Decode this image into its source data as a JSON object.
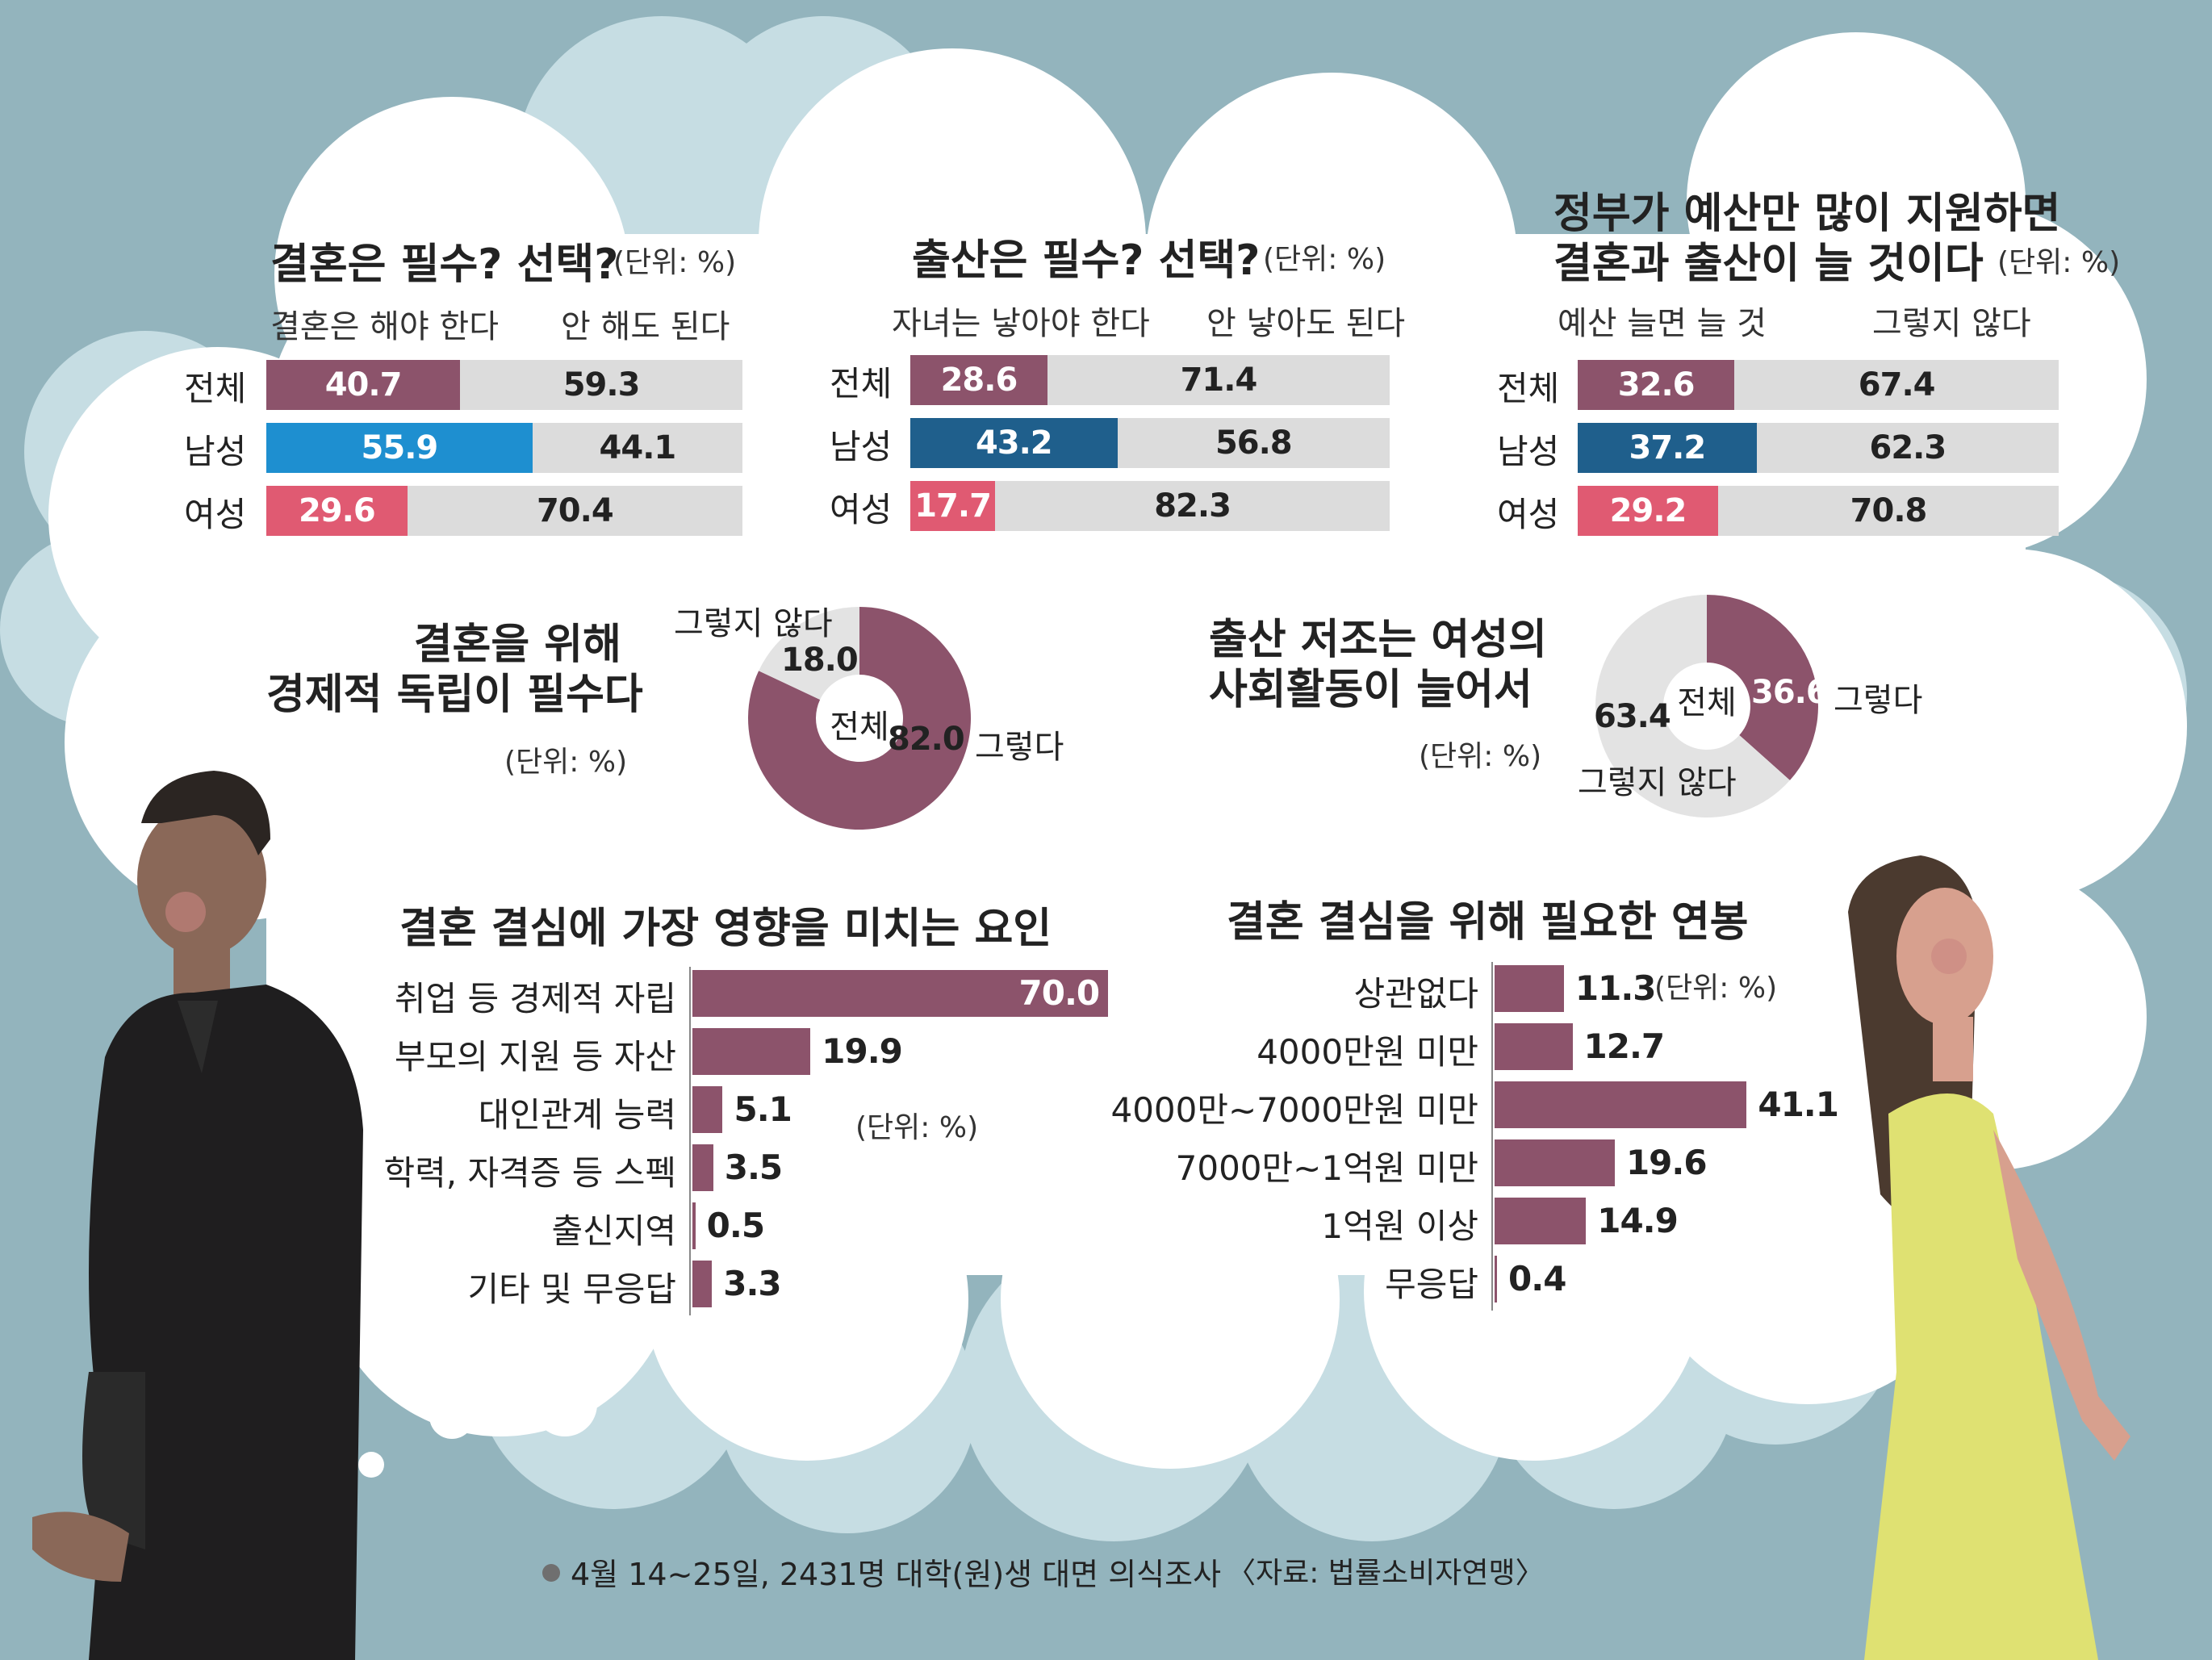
{
  "colors": {
    "background": "#93b4bd",
    "bar_purple": "#8c536b",
    "bar_blue": "#1e8fd0",
    "bar_darkblue": "#1f5f8c",
    "bar_pink": "#e05a72",
    "bar_remainder": "#dcdcdc",
    "donut_remainder": "#e3e3e3"
  },
  "chart_data": [
    {
      "type": "bar",
      "stacked": true,
      "orientation": "horizontal",
      "title": "결혼은 필수? 선택?",
      "unit": "(단위: %)",
      "categories": [
        "전체",
        "남성",
        "여성"
      ],
      "series": [
        {
          "name": "결혼은 해야 한다",
          "values": [
            40.7,
            55.9,
            29.6
          ]
        },
        {
          "name": "안 해도 된다",
          "values": [
            59.3,
            44.1,
            70.4
          ]
        }
      ],
      "xlim": [
        0,
        100
      ]
    },
    {
      "type": "bar",
      "stacked": true,
      "orientation": "horizontal",
      "title": "출산은 필수? 선택?",
      "unit": "(단위: %)",
      "categories": [
        "전체",
        "남성",
        "여성"
      ],
      "series": [
        {
          "name": "자녀는 낳아야 한다",
          "values": [
            28.6,
            43.2,
            17.7
          ]
        },
        {
          "name": "안 낳아도 된다",
          "values": [
            71.4,
            56.8,
            82.3
          ]
        }
      ],
      "xlim": [
        0,
        100
      ]
    },
    {
      "type": "bar",
      "stacked": true,
      "orientation": "horizontal",
      "title_lines": [
        "정부가 예산만 많이 지원하면",
        "결혼과 출산이 늘 것이다"
      ],
      "unit": "(단위: %)",
      "categories": [
        "전체",
        "남성",
        "여성"
      ],
      "series": [
        {
          "name": "예산 늘면 늘 것",
          "values": [
            32.6,
            37.2,
            29.2
          ]
        },
        {
          "name": "그렇지 않다",
          "values": [
            67.4,
            62.3,
            70.8
          ]
        }
      ],
      "xlim": [
        0,
        100
      ]
    },
    {
      "type": "pie",
      "donut": true,
      "title_lines": [
        "결혼을 위해",
        "경제적 독립이 필수다"
      ],
      "unit": "(단위: %)",
      "center_label": "전체",
      "slices": [
        {
          "label": "그렇다",
          "value": 82.0
        },
        {
          "label": "그렇지 않다",
          "value": 18.0
        }
      ]
    },
    {
      "type": "pie",
      "donut": true,
      "title_lines": [
        "출산 저조는 여성의",
        "사회활동이 늘어서"
      ],
      "unit": "(단위: %)",
      "center_label": "전체",
      "slices": [
        {
          "label": "그렇다",
          "value": 36.6
        },
        {
          "label": "그렇지 않다",
          "value": 63.4
        }
      ]
    },
    {
      "type": "bar",
      "orientation": "horizontal",
      "title": "결혼 결심에 가장 영향을 미치는 요인",
      "unit": "(단위: %)",
      "categories": [
        "취업 등 경제적 자립",
        "부모의 지원 등 자산",
        "대인관계 능력",
        "학력, 자격증 등 스펙",
        "출신지역",
        "기타 및 무응답"
      ],
      "values": [
        70.0,
        19.9,
        5.1,
        3.5,
        0.5,
        3.3
      ]
    },
    {
      "type": "bar",
      "orientation": "horizontal",
      "title": "결혼 결심을 위해 필요한 연봉",
      "unit": "(단위: %)",
      "categories": [
        "상관없다",
        "4000만원 미만",
        "4000만~7000만원 미만",
        "7000만~1억원 미만",
        "1억원 이상",
        "무응답"
      ],
      "values": [
        11.3,
        12.7,
        41.1,
        19.6,
        14.9,
        0.4
      ]
    }
  ],
  "footer": {
    "survey": "4월 14~25일, 2431명 대학(원)생 대면 의식조사",
    "source": "〈자료: 법률소비자연맹〉"
  }
}
